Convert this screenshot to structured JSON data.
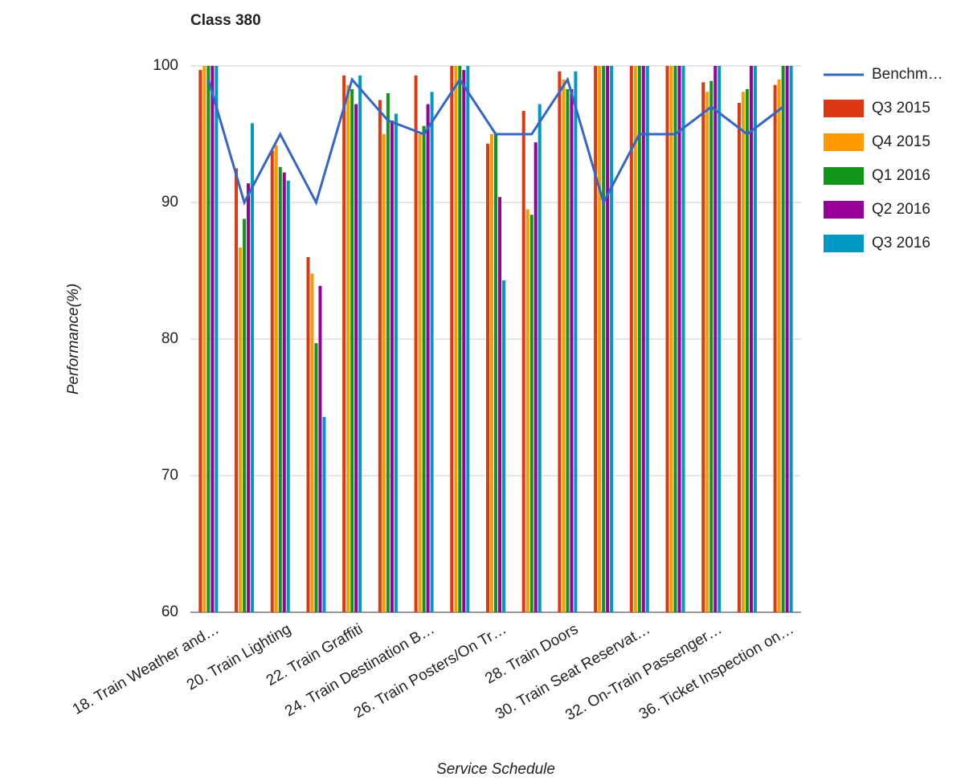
{
  "chart_data": {
    "type": "bar",
    "title": "Class 380",
    "x_label": "Service Schedule",
    "y_label": "Performance(%)",
    "categories": [
      "18. Train Weather and…",
      null,
      "20. Train Lighting",
      null,
      "22. Train Graffiti",
      null,
      "24. Train Destination B…",
      null,
      "26. Train Posters/On Tr…",
      null,
      "28. Train Doors",
      null,
      "30. Train Seat Reservat…",
      null,
      "32. On-Train Passenger…",
      null,
      "36. Ticket Inspection on…"
    ],
    "series": [
      {
        "name": "Benchm…",
        "type": "line",
        "color": "#3366cc",
        "values": [
          99,
          90,
          95,
          90,
          99,
          96,
          95,
          99,
          95,
          95,
          99,
          90,
          95,
          95,
          97,
          95,
          97
        ]
      },
      {
        "name": "Q3 2015",
        "type": "bar",
        "color": "#dc3912",
        "values": [
          99.7,
          92.5,
          93.8,
          86,
          99.3,
          97.5,
          99.3,
          100,
          94.3,
          96.7,
          99.6,
          100,
          100,
          100,
          98.8,
          97.3,
          98.6
        ]
      },
      {
        "name": "Q4 2015",
        "type": "bar",
        "color": "#ff9900",
        "values": [
          100,
          86.7,
          94.2,
          84.8,
          98.6,
          95,
          95,
          100,
          95,
          89.5,
          99,
          100,
          100,
          100,
          98.1,
          98.1,
          99
        ]
      },
      {
        "name": "Q1 2016",
        "type": "bar",
        "color": "#109618",
        "values": [
          100,
          88.8,
          92.6,
          79.7,
          98.3,
          98,
          95.6,
          100,
          95,
          89.1,
          98.3,
          100,
          100,
          100,
          98.9,
          98.3,
          100
        ]
      },
      {
        "name": "Q2 2016",
        "type": "bar",
        "color": "#990099",
        "values": [
          100,
          91.4,
          92.2,
          83.9,
          97.2,
          96,
          97.2,
          99.7,
          90.4,
          94.4,
          98.3,
          100,
          100,
          100,
          100,
          100,
          100
        ]
      },
      {
        "name": "Q3 2016",
        "type": "bar",
        "color": "#0099c6",
        "values": [
          100,
          95.8,
          91.6,
          74.3,
          99.3,
          96.5,
          98.1,
          100,
          84.3,
          97.2,
          99.6,
          100,
          100,
          100,
          100,
          100,
          100
        ]
      }
    ],
    "ylim": [
      60,
      100
    ],
    "yticks": [
      60,
      70,
      80,
      90,
      100
    ],
    "grid": true,
    "legend": "right"
  }
}
